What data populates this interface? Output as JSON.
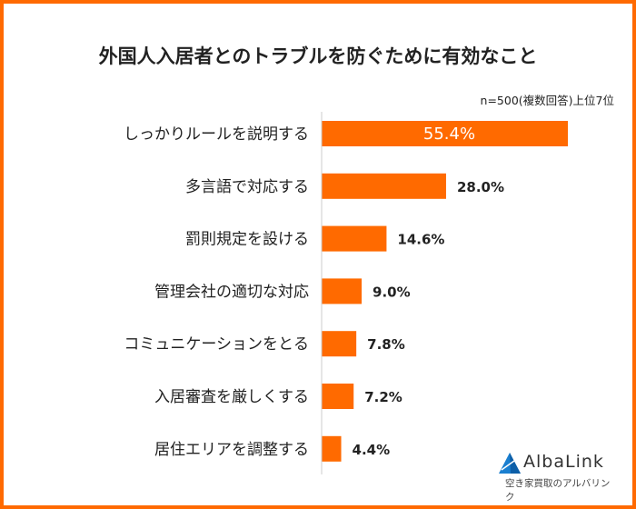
{
  "chart_data": {
    "type": "bar",
    "orientation": "horizontal",
    "title": "外国人入居者とのトラブルを防ぐために有効なこと",
    "note": "n=500(複数回答)上位7位",
    "categories": [
      "しっかりルールを説明する",
      "多言語で対応する",
      "罰則規定を設ける",
      "管理会社の適切な対応",
      "コミュニケーションをとる",
      "入居審査を厳しくする",
      "居住エリアを調整する"
    ],
    "values": [
      55.4,
      28.0,
      14.6,
      9.0,
      7.8,
      7.2,
      4.4
    ],
    "labels": [
      "55.4%",
      "28.0%",
      "14.6%",
      "9.0%",
      "7.8%",
      "7.2%",
      "4.4%"
    ],
    "unit": "%",
    "grid": false,
    "bar_color": "#ff6a00",
    "frame_color": "#ff6a00"
  },
  "logo": {
    "name": "AlbaLink",
    "tagline": "空き家買取のアルバリンク"
  }
}
